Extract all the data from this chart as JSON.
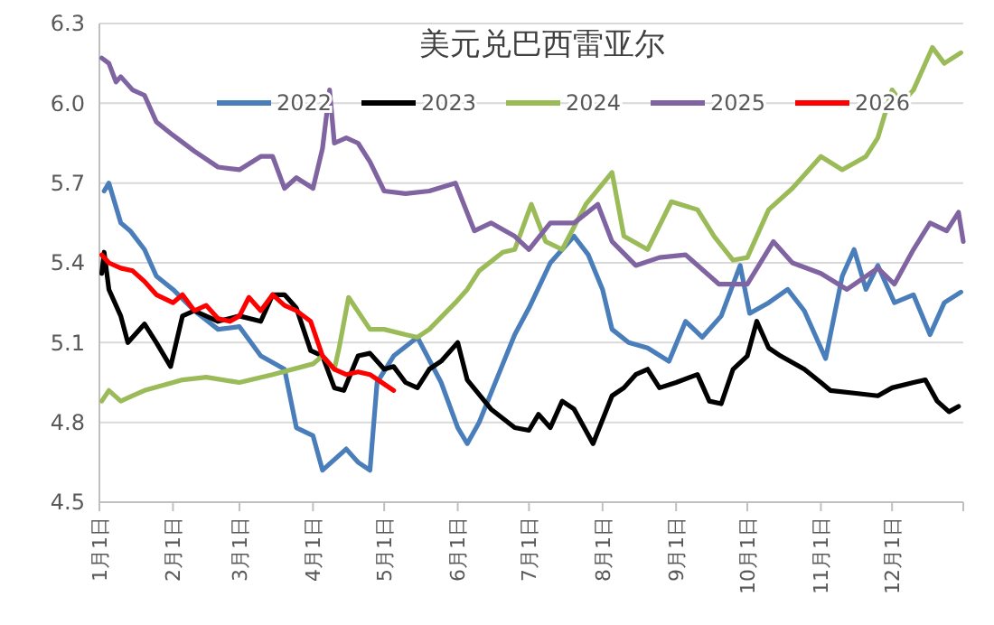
{
  "chart_data": {
    "type": "line",
    "title": "美元兑巴西雷亚尔",
    "xlim": [
      "--01-01",
      "--12-31"
    ],
    "xticks": [
      {
        "value": "--01-01",
        "label": "1月1日"
      },
      {
        "value": "--02-01",
        "label": "2月1日"
      },
      {
        "value": "--03-01",
        "label": "3月1日"
      },
      {
        "value": "--04-01",
        "label": "4月1日"
      },
      {
        "value": "--05-01",
        "label": "5月1日"
      },
      {
        "value": "--06-01",
        "label": "6月1日"
      },
      {
        "value": "--07-01",
        "label": "7月1日"
      },
      {
        "value": "--08-01",
        "label": "8月1日"
      },
      {
        "value": "--09-01",
        "label": "9月1日"
      },
      {
        "value": "--10-01",
        "label": "10月1日"
      },
      {
        "value": "--11-01",
        "label": "11月1日"
      },
      {
        "value": "--12-01",
        "label": "12月1日"
      },
      {
        "value": "--12-31",
        "label": null
      }
    ],
    "ylim": [
      4.5,
      6.3
    ],
    "yticks": [
      {
        "value": 4.5,
        "label": "4.5"
      },
      {
        "value": 4.8,
        "label": "4.8"
      },
      {
        "value": 5.1,
        "label": "5.1"
      },
      {
        "value": 5.4,
        "label": "5.4"
      },
      {
        "value": 5.7,
        "label": "5.7"
      },
      {
        "value": 6.0,
        "label": "6.0"
      },
      {
        "value": 6.3,
        "label": "6.3"
      }
    ],
    "grid": "y",
    "legend": "top",
    "line_style": "solid",
    "marker": "none",
    "series": [
      {
        "name": "2022",
        "color": "#4a7ebb",
        "x": [
          "--01-03",
          "--01-05",
          "--01-10",
          "--01-14",
          "--01-20",
          "--01-25",
          "--02-01",
          "--02-10",
          "--02-20",
          "--03-01",
          "--03-10",
          "--03-20",
          "--03-25",
          "--04-01",
          "--04-05",
          "--04-15",
          "--04-20",
          "--04-25",
          "--04-28",
          "--05-05",
          "--05-15",
          "--05-25",
          "--06-01",
          "--06-05",
          "--06-10",
          "--06-20",
          "--06-25",
          "--07-01",
          "--07-10",
          "--07-15",
          "--07-20",
          "--07-26",
          "--08-01",
          "--08-05",
          "--08-12",
          "--08-20",
          "--08-29",
          "--09-05",
          "--09-12",
          "--09-20",
          "--09-28",
          "--10-02",
          "--10-10",
          "--10-18",
          "--10-25",
          "--11-03",
          "--11-10",
          "--11-15",
          "--11-20",
          "--11-25",
          "--12-02",
          "--12-10",
          "--12-17",
          "--12-23",
          "--12-30"
        ],
        "values": [
          5.67,
          5.7,
          5.55,
          5.52,
          5.45,
          5.35,
          5.3,
          5.22,
          5.15,
          5.16,
          5.05,
          5.0,
          4.78,
          4.75,
          4.62,
          4.7,
          4.65,
          4.62,
          4.95,
          5.05,
          5.12,
          4.95,
          4.78,
          4.72,
          4.8,
          5.02,
          5.13,
          5.23,
          5.4,
          5.45,
          5.5,
          5.43,
          5.3,
          5.15,
          5.1,
          5.08,
          5.03,
          5.18,
          5.12,
          5.2,
          5.39,
          5.21,
          5.25,
          5.3,
          5.22,
          5.04,
          5.35,
          5.45,
          5.3,
          5.39,
          5.25,
          5.28,
          5.13,
          5.25,
          5.29
        ]
      },
      {
        "name": "2023",
        "color": "#000000",
        "x": [
          "--01-02",
          "--01-03",
          "--01-05",
          "--01-10",
          "--01-13",
          "--01-20",
          "--01-25",
          "--01-31",
          "--02-05",
          "--02-10",
          "--02-20",
          "--03-01",
          "--03-10",
          "--03-15",
          "--03-20",
          "--03-25",
          "--03-31",
          "--04-05",
          "--04-10",
          "--04-14",
          "--04-20",
          "--04-25",
          "--05-01",
          "--05-05",
          "--05-10",
          "--05-15",
          "--05-20",
          "--05-25",
          "--06-01",
          "--06-05",
          "--06-15",
          "--06-25",
          "--07-01",
          "--07-05",
          "--07-10",
          "--07-15",
          "--07-20",
          "--07-28",
          "--08-05",
          "--08-10",
          "--08-15",
          "--08-20",
          "--08-25",
          "--09-01",
          "--09-10",
          "--09-15",
          "--09-20",
          "--09-25",
          "--10-01",
          "--10-05",
          "--10-10",
          "--10-15",
          "--10-25",
          "--11-01",
          "--11-05",
          "--11-15",
          "--11-25",
          "--12-01",
          "--12-10",
          "--12-15",
          "--12-20",
          "--12-25",
          "--12-29"
        ],
        "values": [
          5.36,
          5.44,
          5.3,
          5.2,
          5.1,
          5.17,
          5.1,
          5.01,
          5.2,
          5.22,
          5.18,
          5.2,
          5.18,
          5.28,
          5.28,
          5.23,
          5.07,
          5.05,
          4.93,
          4.92,
          5.05,
          5.06,
          5.0,
          5.01,
          4.95,
          4.93,
          5.0,
          5.03,
          5.1,
          4.96,
          4.85,
          4.78,
          4.77,
          4.83,
          4.78,
          4.88,
          4.85,
          4.72,
          4.9,
          4.93,
          4.98,
          5.0,
          4.93,
          4.95,
          4.98,
          4.88,
          4.87,
          5.0,
          5.05,
          5.18,
          5.08,
          5.05,
          5.0,
          4.95,
          4.92,
          4.91,
          4.9,
          4.93,
          4.95,
          4.96,
          4.88,
          4.84,
          4.86
        ]
      },
      {
        "name": "2024",
        "color": "#9bbb59",
        "x": [
          "--01-02",
          "--01-05",
          "--01-10",
          "--01-15",
          "--01-20",
          "--02-01",
          "--02-05",
          "--02-15",
          "--03-01",
          "--03-15",
          "--04-01",
          "--04-05",
          "--04-10",
          "--04-12",
          "--04-16",
          "--04-25",
          "--05-01",
          "--05-10",
          "--05-15",
          "--05-20",
          "--05-31",
          "--06-05",
          "--06-10",
          "--06-20",
          "--06-25",
          "--07-02",
          "--07-08",
          "--07-15",
          "--07-25",
          "--08-05",
          "--08-10",
          "--08-20",
          "--08-30",
          "--09-10",
          "--09-17",
          "--09-25",
          "--10-01",
          "--10-10",
          "--10-20",
          "--11-01",
          "--11-10",
          "--11-20",
          "--11-25",
          "--12-01",
          "--12-05",
          "--12-10",
          "--12-18",
          "--12-23",
          "--12-30"
        ],
        "values": [
          4.88,
          4.92,
          4.88,
          4.9,
          4.92,
          4.95,
          4.96,
          4.97,
          4.95,
          4.98,
          5.02,
          5.05,
          5.0,
          5.08,
          5.27,
          5.15,
          5.15,
          5.13,
          5.12,
          5.15,
          5.25,
          5.3,
          5.37,
          5.44,
          5.45,
          5.62,
          5.48,
          5.45,
          5.62,
          5.74,
          5.5,
          5.45,
          5.63,
          5.6,
          5.5,
          5.41,
          5.42,
          5.6,
          5.68,
          5.8,
          5.75,
          5.8,
          5.87,
          6.05,
          6.0,
          6.05,
          6.21,
          6.15,
          6.19
        ]
      },
      {
        "name": "2025",
        "color": "#8064a2",
        "x": [
          "--01-02",
          "--01-05",
          "--01-08",
          "--01-10",
          "--01-15",
          "--01-20",
          "--01-25",
          "--02-01",
          "--02-10",
          "--02-20",
          "--03-01",
          "--03-10",
          "--03-15",
          "--03-20",
          "--03-25",
          "--04-01",
          "--04-05",
          "--04-08",
          "--04-10",
          "--04-15",
          "--04-20",
          "--04-25",
          "--05-01",
          "--05-10",
          "--05-20",
          "--05-31",
          "--06-08",
          "--06-15",
          "--06-25",
          "--07-01",
          "--07-10",
          "--07-20",
          "--07-30",
          "--08-05",
          "--08-15",
          "--08-25",
          "--09-05",
          "--09-19",
          "--10-01",
          "--10-12",
          "--10-20",
          "--11-01",
          "--11-12",
          "--11-25",
          "--12-02",
          "--12-10",
          "--12-17",
          "--12-24",
          "--12-29",
          "--12-31"
        ],
        "values": [
          6.17,
          6.15,
          6.08,
          6.1,
          6.05,
          6.03,
          5.93,
          5.88,
          5.82,
          5.76,
          5.75,
          5.8,
          5.8,
          5.68,
          5.72,
          5.68,
          5.83,
          6.05,
          5.85,
          5.87,
          5.85,
          5.78,
          5.67,
          5.66,
          5.67,
          5.7,
          5.52,
          5.55,
          5.5,
          5.45,
          5.55,
          5.55,
          5.62,
          5.48,
          5.39,
          5.42,
          5.43,
          5.32,
          5.32,
          5.48,
          5.4,
          5.36,
          5.3,
          5.38,
          5.32,
          5.45,
          5.55,
          5.52,
          5.59,
          5.48
        ]
      },
      {
        "name": "2026",
        "color": "#ff0000",
        "x": [
          "--01-02",
          "--01-05",
          "--01-10",
          "--01-15",
          "--01-20",
          "--01-25",
          "--02-01",
          "--02-05",
          "--02-10",
          "--02-15",
          "--02-20",
          "--02-25",
          "--03-01",
          "--03-05",
          "--03-10",
          "--03-15",
          "--03-20",
          "--03-25",
          "--03-31",
          "--04-05",
          "--04-10",
          "--04-15",
          "--04-20",
          "--04-25",
          "--04-30",
          "--05-05"
        ],
        "values": [
          5.43,
          5.4,
          5.38,
          5.37,
          5.33,
          5.28,
          5.25,
          5.28,
          5.22,
          5.24,
          5.19,
          5.18,
          5.2,
          5.27,
          5.22,
          5.28,
          5.24,
          5.22,
          5.18,
          5.05,
          5.0,
          4.98,
          4.99,
          4.98,
          4.95,
          4.92
        ]
      }
    ]
  }
}
